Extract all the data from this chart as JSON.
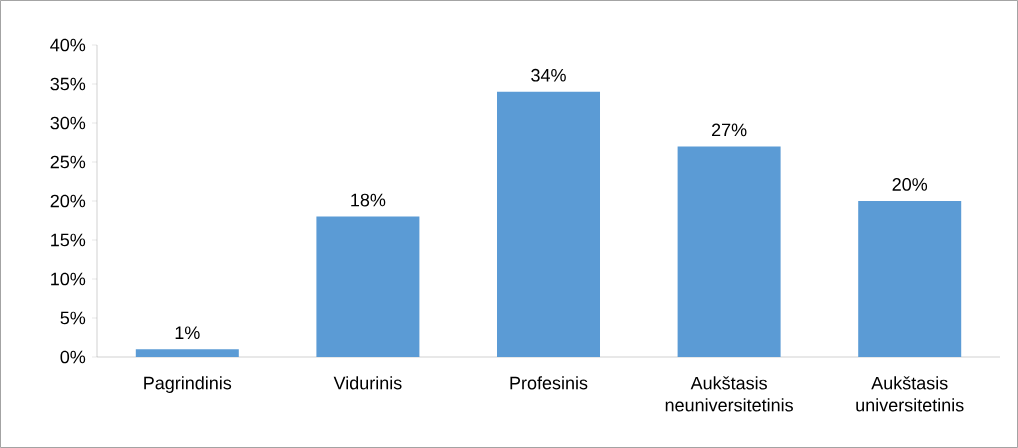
{
  "chart_data": {
    "type": "bar",
    "categories": [
      "Pagrindinis",
      "Vidurinis",
      "Profesinis",
      "Aukštasis neuniversitetinis",
      "Aukštasis universitetinis"
    ],
    "values": [
      1,
      18,
      34,
      27,
      20
    ],
    "value_labels": [
      "1%",
      "18%",
      "34%",
      "27%",
      "20%"
    ],
    "color": "#5b9bd5",
    "ylim": [
      0,
      40
    ],
    "yticks": [
      {
        "value": 0,
        "label": "0%"
      },
      {
        "value": 5,
        "label": "5%"
      },
      {
        "value": 10,
        "label": "10%"
      },
      {
        "value": 15,
        "label": "15%"
      },
      {
        "value": 20,
        "label": "20%"
      },
      {
        "value": 25,
        "label": "25%"
      },
      {
        "value": 30,
        "label": "30%"
      },
      {
        "value": 35,
        "label": "35%"
      },
      {
        "value": 40,
        "label": "40%"
      }
    ],
    "grid": false
  }
}
